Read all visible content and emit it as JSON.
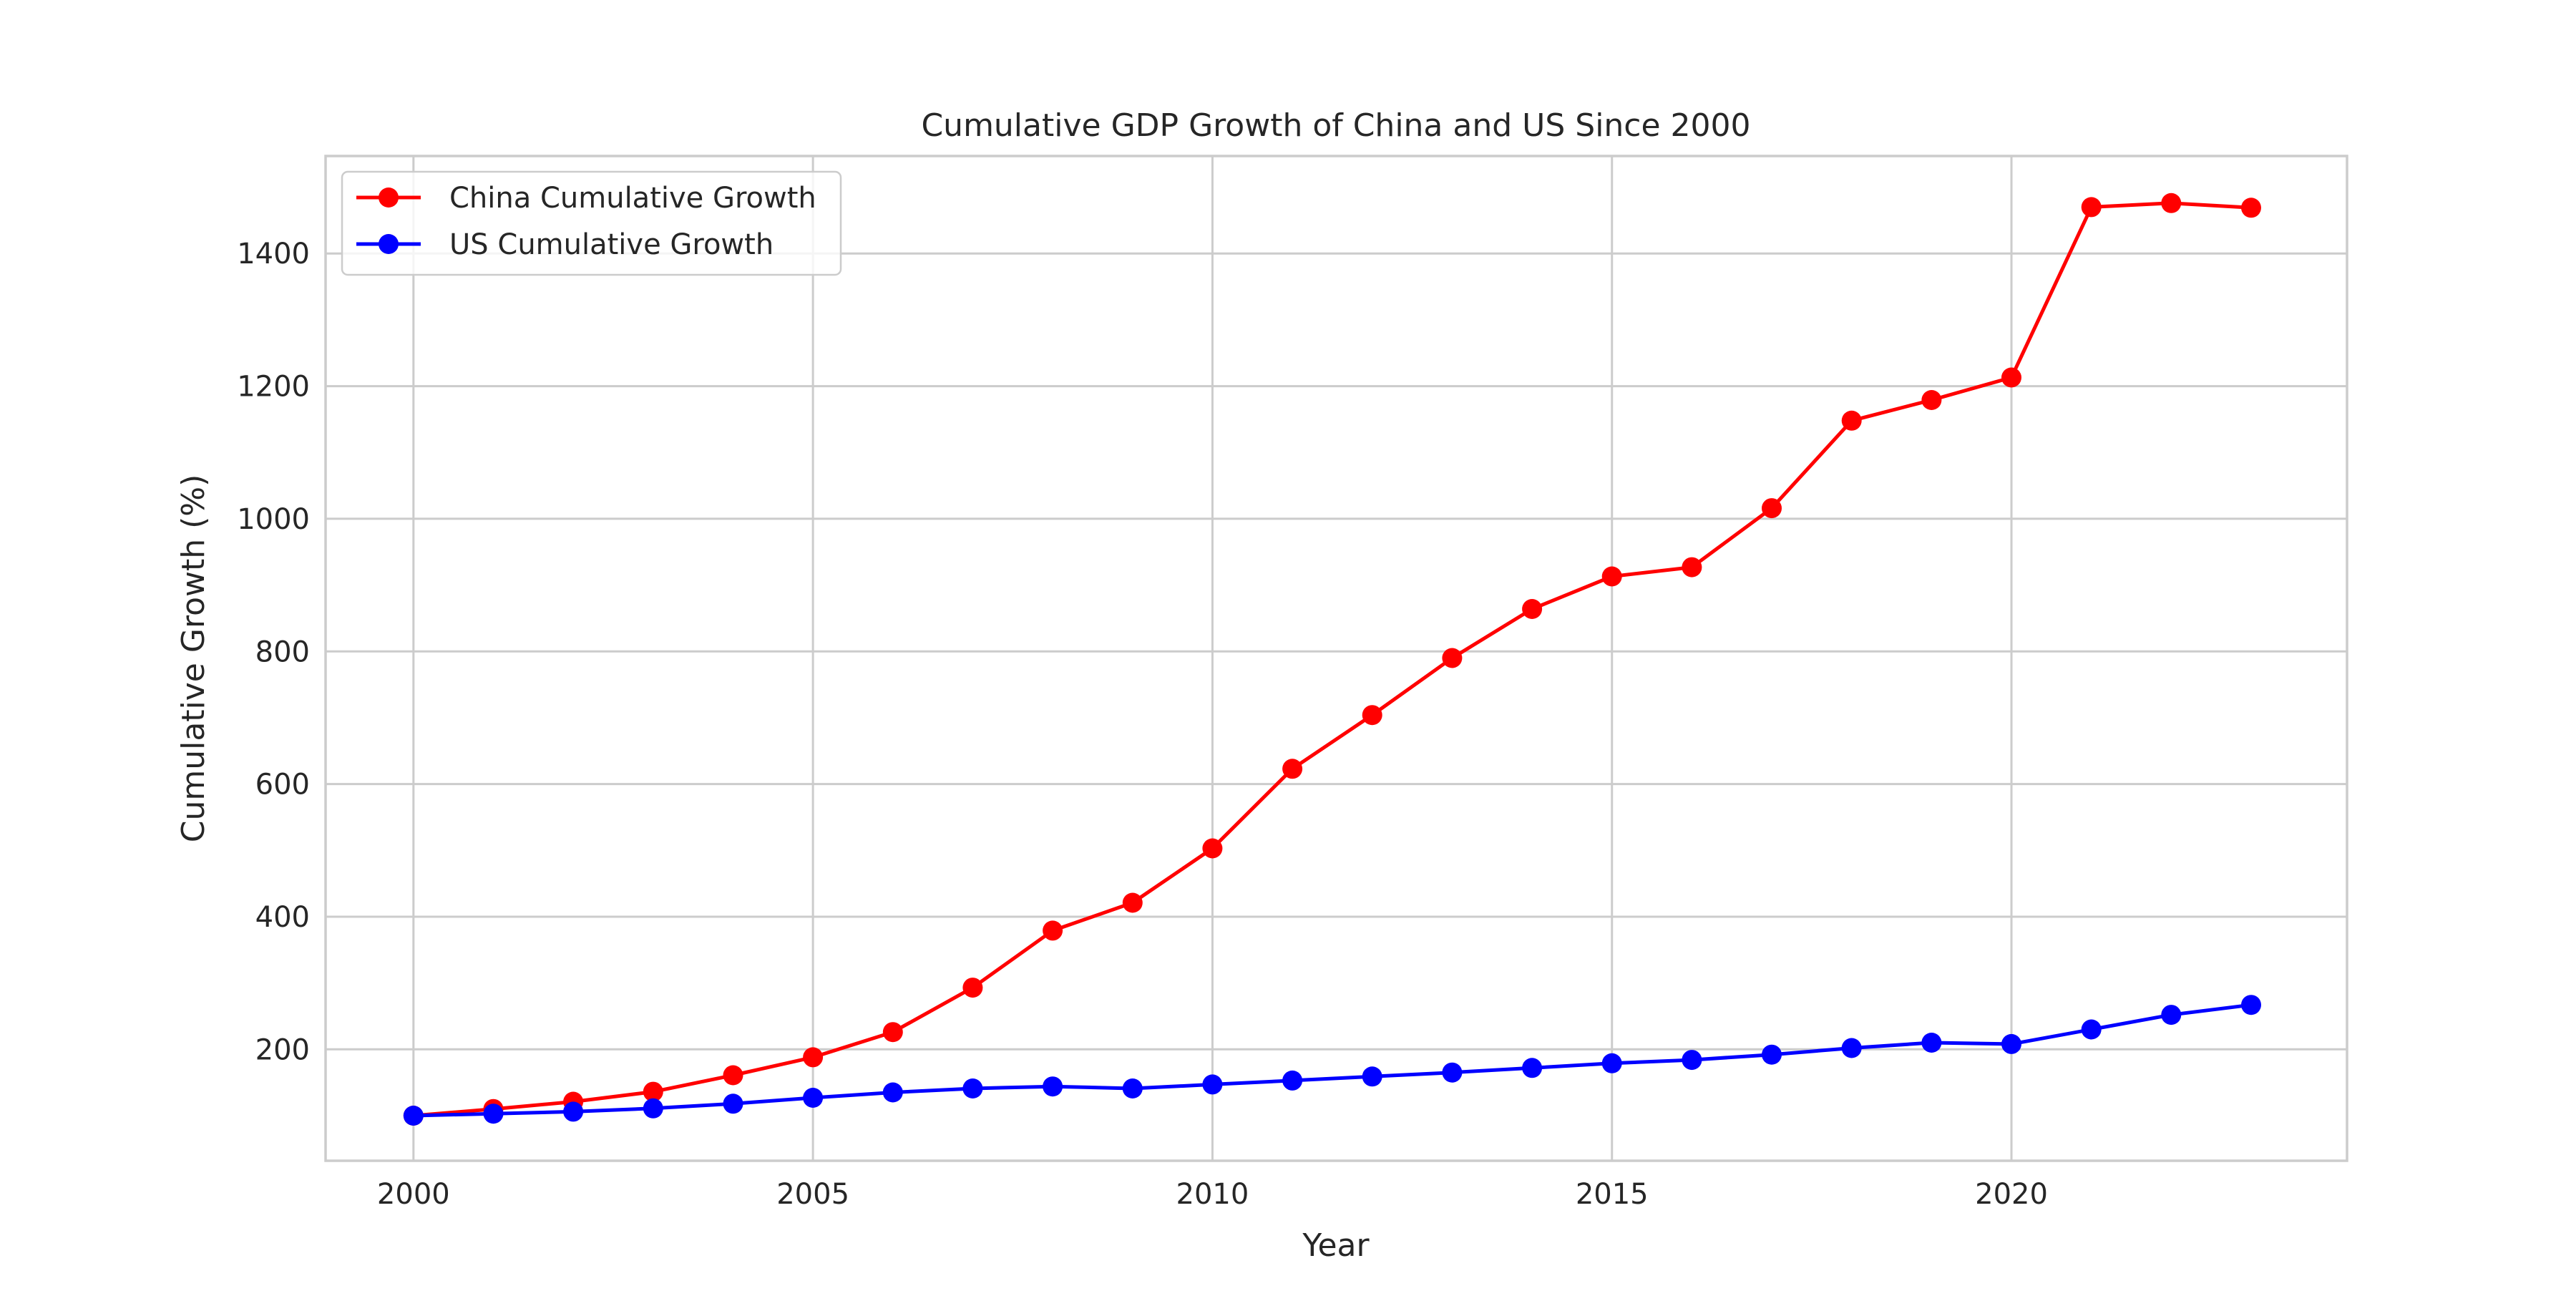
{
  "chart_data": {
    "type": "line",
    "title": "Cumulative GDP Growth of China and US Since 2000",
    "xlabel": "Year",
    "ylabel": "Cumulative Growth (%)",
    "x": [
      2000,
      2001,
      2002,
      2003,
      2004,
      2005,
      2006,
      2007,
      2008,
      2009,
      2010,
      2011,
      2012,
      2013,
      2014,
      2015,
      2016,
      2017,
      2018,
      2019,
      2020,
      2021,
      2022,
      2023
    ],
    "xlim": [
      1998.9,
      2024.2
    ],
    "ylim": [
      32,
      1547
    ],
    "xticks": [
      2000,
      2005,
      2010,
      2015,
      2020
    ],
    "yticks": [
      200,
      400,
      600,
      800,
      1000,
      1200,
      1400
    ],
    "grid": true,
    "legend_position": "top-left",
    "series": [
      {
        "name": "China Cumulative Growth",
        "color": "#ff0000",
        "marker": "circle",
        "values": [
          100,
          110,
          121,
          136,
          161,
          188,
          226,
          293,
          379,
          421,
          503,
          623,
          704,
          790,
          864,
          913,
          927,
          1016,
          1148,
          1179,
          1213,
          1470,
          1476,
          1469
        ]
      },
      {
        "name": "US Cumulative Growth",
        "color": "#0000ff",
        "marker": "circle",
        "values": [
          100,
          103,
          106,
          111,
          118,
          127,
          135,
          141,
          144,
          141,
          147,
          153,
          159,
          165,
          172,
          179,
          184,
          192,
          202,
          210,
          208,
          230,
          252,
          267
        ]
      }
    ]
  }
}
